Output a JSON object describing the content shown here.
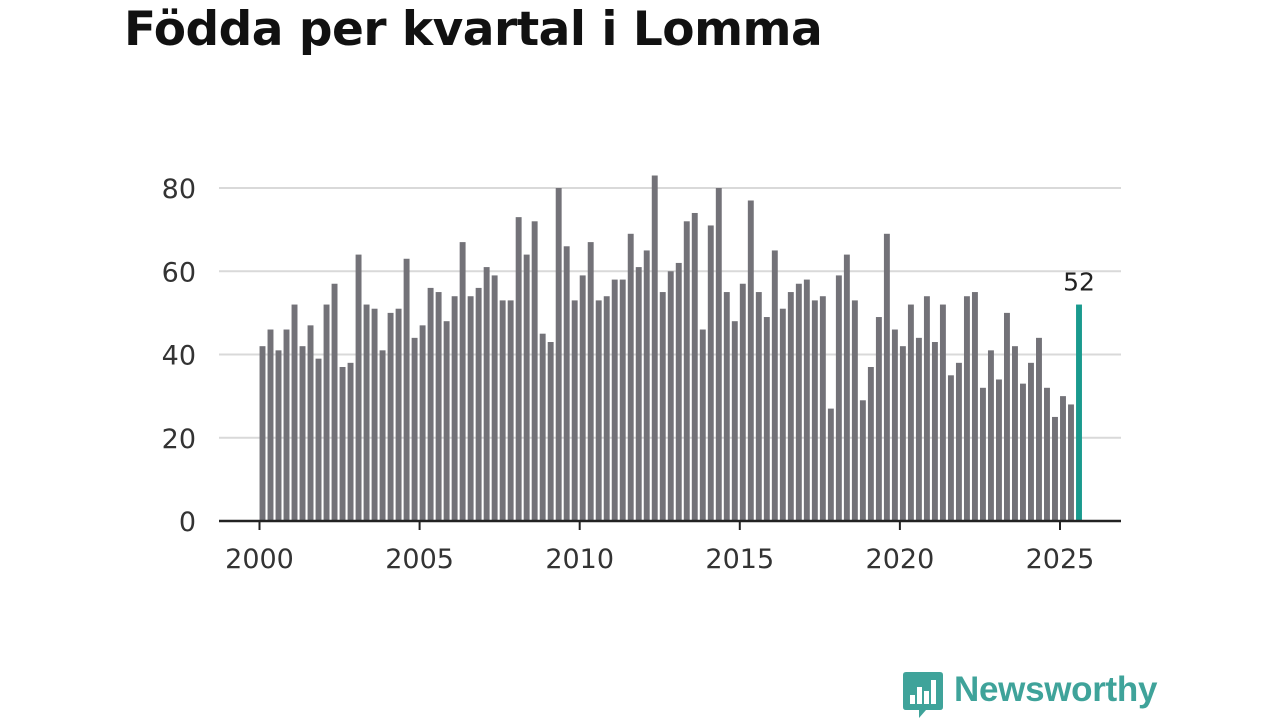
{
  "title": "Födda per kvartal i Lomma",
  "brand": {
    "name": "Newsworthy",
    "logo_icon": "newsworthy-logo-icon",
    "color": "#3fa39a"
  },
  "chart_data": {
    "type": "bar",
    "title": "Födda per kvartal i Lomma",
    "xlabel": "",
    "ylabel": "",
    "ylim": [
      0,
      85
    ],
    "yticks": [
      0,
      20,
      40,
      60,
      80
    ],
    "xticks": [
      "2000",
      "2005",
      "2010",
      "2015",
      "2020",
      "2025"
    ],
    "grid": true,
    "bar_color": "#737278",
    "highlight_color": "#1a9a8e",
    "highlight_label": "52",
    "series": [
      {
        "name": "Födda",
        "start_year": 2000,
        "values": [
          42,
          46,
          41,
          46,
          52,
          42,
          47,
          39,
          52,
          57,
          37,
          38,
          64,
          52,
          51,
          41,
          50,
          51,
          63,
          44,
          47,
          56,
          55,
          48,
          54,
          67,
          54,
          56,
          61,
          59,
          53,
          53,
          73,
          64,
          72,
          45,
          43,
          80,
          66,
          53,
          59,
          67,
          53,
          54,
          58,
          58,
          69,
          61,
          65,
          83,
          55,
          60,
          62,
          72,
          74,
          46,
          71,
          80,
          55,
          48,
          57,
          77,
          55,
          49,
          65,
          51,
          55,
          57,
          58,
          53,
          54,
          27,
          59,
          64,
          53,
          29,
          37,
          49,
          69,
          46,
          42,
          52,
          44,
          54,
          43,
          52,
          35,
          38,
          54,
          55,
          32,
          41,
          34,
          50,
          42,
          33,
          38,
          44,
          32,
          25,
          30,
          28,
          52
        ]
      }
    ]
  }
}
